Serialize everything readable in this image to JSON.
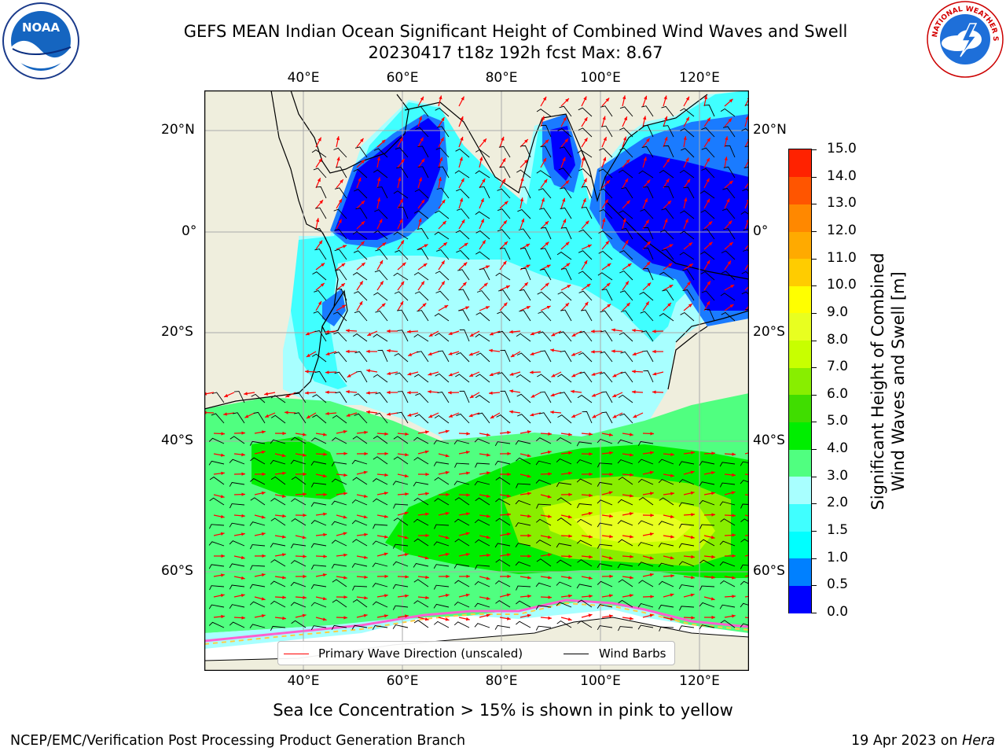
{
  "title_line1": "GEFS MEAN Indian Ocean Significant Height of Combined Wind Waves and Swell",
  "title_line2": "20230417 t18z 192h fcst   Max: 8.67",
  "logos": {
    "left": "NOAA",
    "right": "NATIONAL WEATHER SERVICE"
  },
  "lon_ticks": [
    "40°E",
    "60°E",
    "80°E",
    "100°E",
    "120°E"
  ],
  "lat_ticks_left": [
    "20°N",
    "0°",
    "20°S",
    "40°S",
    "60°S"
  ],
  "lat_ticks_right": [
    "20°N",
    "0°",
    "20°S",
    "40°S",
    "60°S"
  ],
  "colorbar": {
    "label_line1": "Significant Height of Combined",
    "label_line2": "Wind Waves and Swell [m]",
    "ticks": [
      "0.0",
      "0.5",
      "1.0",
      "1.5",
      "2.0",
      "3.0",
      "4.0",
      "5.0",
      "6.0",
      "7.0",
      "8.0",
      "9.0",
      "10.0",
      "11.0",
      "12.0",
      "13.0",
      "14.0",
      "15.0"
    ],
    "colors": [
      "#0000ff",
      "#0080ff",
      "#00ffff",
      "#40ffff",
      "#a8ffff",
      "#50ff80",
      "#00ee00",
      "#40dd00",
      "#88ee00",
      "#c8ff00",
      "#e8ff20",
      "#ffff00",
      "#ffcc00",
      "#ffaa00",
      "#ff8800",
      "#ff5500",
      "#ff2200",
      "#ff0000"
    ]
  },
  "legend": {
    "wave_direction": "Primary Wave Direction (unscaled)",
    "wave_color": "#ff0000",
    "wind_barbs": "Wind Barbs",
    "barb_color": "#000000"
  },
  "ice_note": "Sea Ice Concentration > 15% is shown in pink to yellow",
  "footer_left": "NCEP/EMC/Verification Post Processing Product Generation Branch",
  "footer_right_date": "19 Apr 2023 on ",
  "footer_right_host": "Hera",
  "colors": {
    "land": "#efeedd",
    "grid": "#aaaaaa"
  }
}
